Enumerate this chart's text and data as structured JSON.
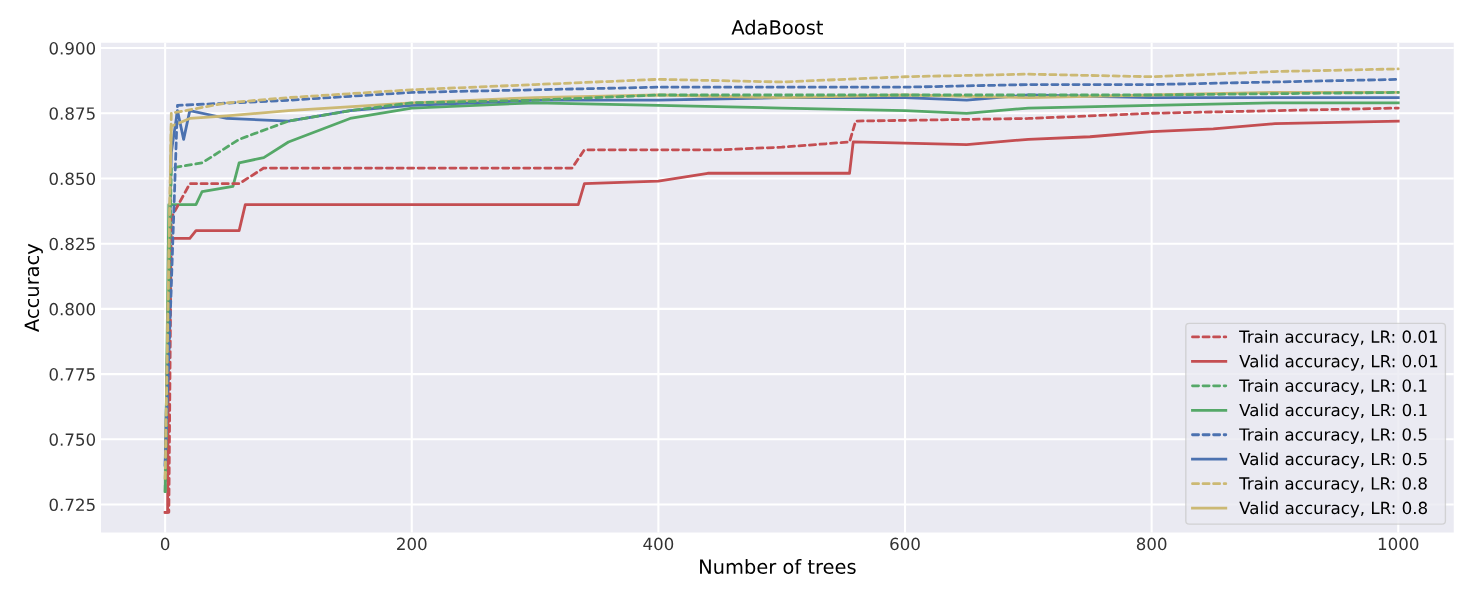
{
  "chart_data": {
    "type": "line",
    "title": "AdaBoost",
    "xlabel": "Number of trees",
    "ylabel": "Accuracy",
    "xlim": [
      -52,
      1045
    ],
    "ylim": [
      0.7143,
      0.902
    ],
    "xticks": [
      0,
      200,
      400,
      600,
      800,
      1000
    ],
    "yticks": [
      {
        "value": 0.725,
        "label": "0.725"
      },
      {
        "value": 0.75,
        "label": "0.750"
      },
      {
        "value": 0.775,
        "label": "0.775"
      },
      {
        "value": 0.8,
        "label": "0.800"
      },
      {
        "value": 0.825,
        "label": "0.825"
      },
      {
        "value": 0.85,
        "label": "0.850"
      },
      {
        "value": 0.875,
        "label": "0.875"
      },
      {
        "value": 0.9,
        "label": "0.900"
      }
    ],
    "grid": true,
    "legend": "bottom right",
    "series": [
      {
        "name": "Train accuracy, LR: 0.01",
        "color": "#c44e52",
        "line_style": "dashed",
        "x": [
          0,
          3,
          5,
          20,
          60,
          80,
          330,
          340,
          450,
          500,
          555,
          560,
          700,
          800,
          900,
          1000
        ],
        "values": [
          0.722,
          0.722,
          0.835,
          0.848,
          0.848,
          0.854,
          0.854,
          0.861,
          0.861,
          0.862,
          0.864,
          0.872,
          0.873,
          0.875,
          0.876,
          0.877
        ]
      },
      {
        "name": "Valid accuracy, LR: 0.01",
        "color": "#c44e52",
        "line_style": "solid",
        "x": [
          0,
          2,
          3,
          20,
          25,
          60,
          65,
          335,
          340,
          400,
          440,
          555,
          558,
          650,
          700,
          750,
          800,
          850,
          900,
          1000
        ],
        "values": [
          0.722,
          0.722,
          0.827,
          0.827,
          0.83,
          0.83,
          0.84,
          0.84,
          0.848,
          0.849,
          0.852,
          0.852,
          0.864,
          0.863,
          0.865,
          0.866,
          0.868,
          0.869,
          0.871,
          0.872
        ]
      },
      {
        "name": "Train accuracy, LR: 0.1",
        "color": "#55a868",
        "line_style": "dashed",
        "x": [
          0,
          5,
          30,
          60,
          100,
          150,
          200,
          300,
          400,
          500,
          600,
          700,
          800,
          1000
        ],
        "values": [
          0.73,
          0.854,
          0.856,
          0.865,
          0.872,
          0.876,
          0.879,
          0.88,
          0.882,
          0.882,
          0.882,
          0.882,
          0.882,
          0.883
        ]
      },
      {
        "name": "Valid accuracy, LR: 0.1",
        "color": "#55a868",
        "line_style": "solid",
        "x": [
          0,
          3,
          25,
          30,
          55,
          60,
          80,
          100,
          150,
          200,
          300,
          400,
          500,
          600,
          650,
          700,
          800,
          900,
          1000
        ],
        "values": [
          0.73,
          0.84,
          0.84,
          0.845,
          0.847,
          0.856,
          0.858,
          0.864,
          0.873,
          0.877,
          0.879,
          0.878,
          0.877,
          0.876,
          0.875,
          0.877,
          0.878,
          0.879,
          0.879
        ]
      },
      {
        "name": "Train accuracy, LR: 0.5",
        "color": "#4c72b0",
        "line_style": "dashed",
        "x": [
          0,
          10,
          100,
          200,
          300,
          400,
          500,
          600,
          700,
          800,
          900,
          1000
        ],
        "values": [
          0.74,
          0.878,
          0.88,
          0.883,
          0.884,
          0.885,
          0.885,
          0.885,
          0.886,
          0.886,
          0.887,
          0.888
        ]
      },
      {
        "name": "Valid accuracy, LR: 0.5",
        "color": "#4c72b0",
        "line_style": "solid",
        "x": [
          0,
          5,
          10,
          15,
          20,
          50,
          100,
          150,
          200,
          300,
          400,
          500,
          600,
          650,
          700,
          800,
          900,
          1000
        ],
        "values": [
          0.74,
          0.86,
          0.876,
          0.865,
          0.876,
          0.873,
          0.872,
          0.876,
          0.878,
          0.88,
          0.88,
          0.881,
          0.881,
          0.88,
          0.882,
          0.881,
          0.881,
          0.881
        ]
      },
      {
        "name": "Train accuracy, LR: 0.8",
        "color": "#ccb974",
        "line_style": "dashed",
        "x": [
          0,
          5,
          50,
          100,
          200,
          300,
          400,
          500,
          600,
          700,
          800,
          900,
          1000
        ],
        "values": [
          0.735,
          0.875,
          0.879,
          0.881,
          0.884,
          0.886,
          0.888,
          0.887,
          0.889,
          0.89,
          0.889,
          0.891,
          0.892
        ]
      },
      {
        "name": "Valid accuracy, LR: 0.8",
        "color": "#ccb974",
        "line_style": "solid",
        "x": [
          0,
          5,
          20,
          50,
          100,
          200,
          300,
          400,
          500,
          600,
          700,
          800,
          900,
          1000
        ],
        "values": [
          0.735,
          0.87,
          0.873,
          0.874,
          0.876,
          0.879,
          0.881,
          0.882,
          0.881,
          0.882,
          0.881,
          0.882,
          0.883,
          0.883
        ]
      }
    ]
  }
}
